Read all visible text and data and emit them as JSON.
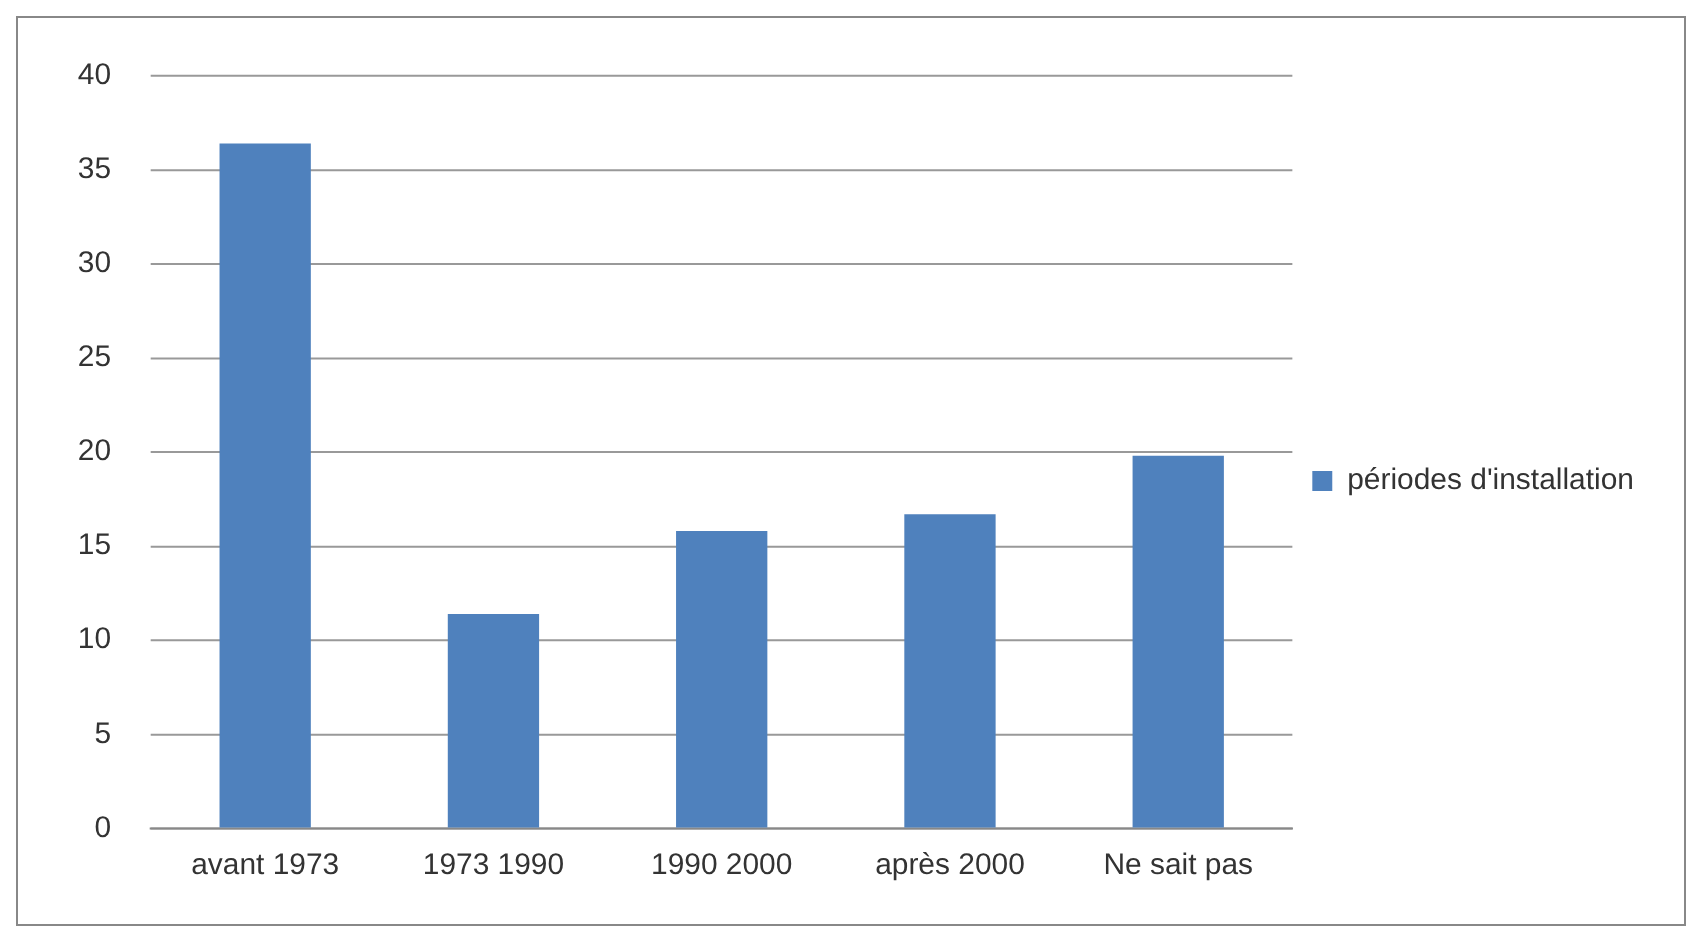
{
  "chart_data": {
    "type": "bar",
    "categories": [
      "avant 1973",
      "1973 1990",
      "1990 2000",
      "après 2000",
      "Ne sait pas"
    ],
    "series": [
      {
        "name": "périodes d'installation",
        "color": "#4f81bd",
        "values": [
          36.4,
          11.4,
          15.8,
          16.7,
          19.8
        ]
      }
    ],
    "ylim": [
      0,
      40
    ],
    "yticks": [
      0,
      5,
      10,
      15,
      20,
      25,
      30,
      35,
      40
    ],
    "grid": "y",
    "legend": "right"
  }
}
